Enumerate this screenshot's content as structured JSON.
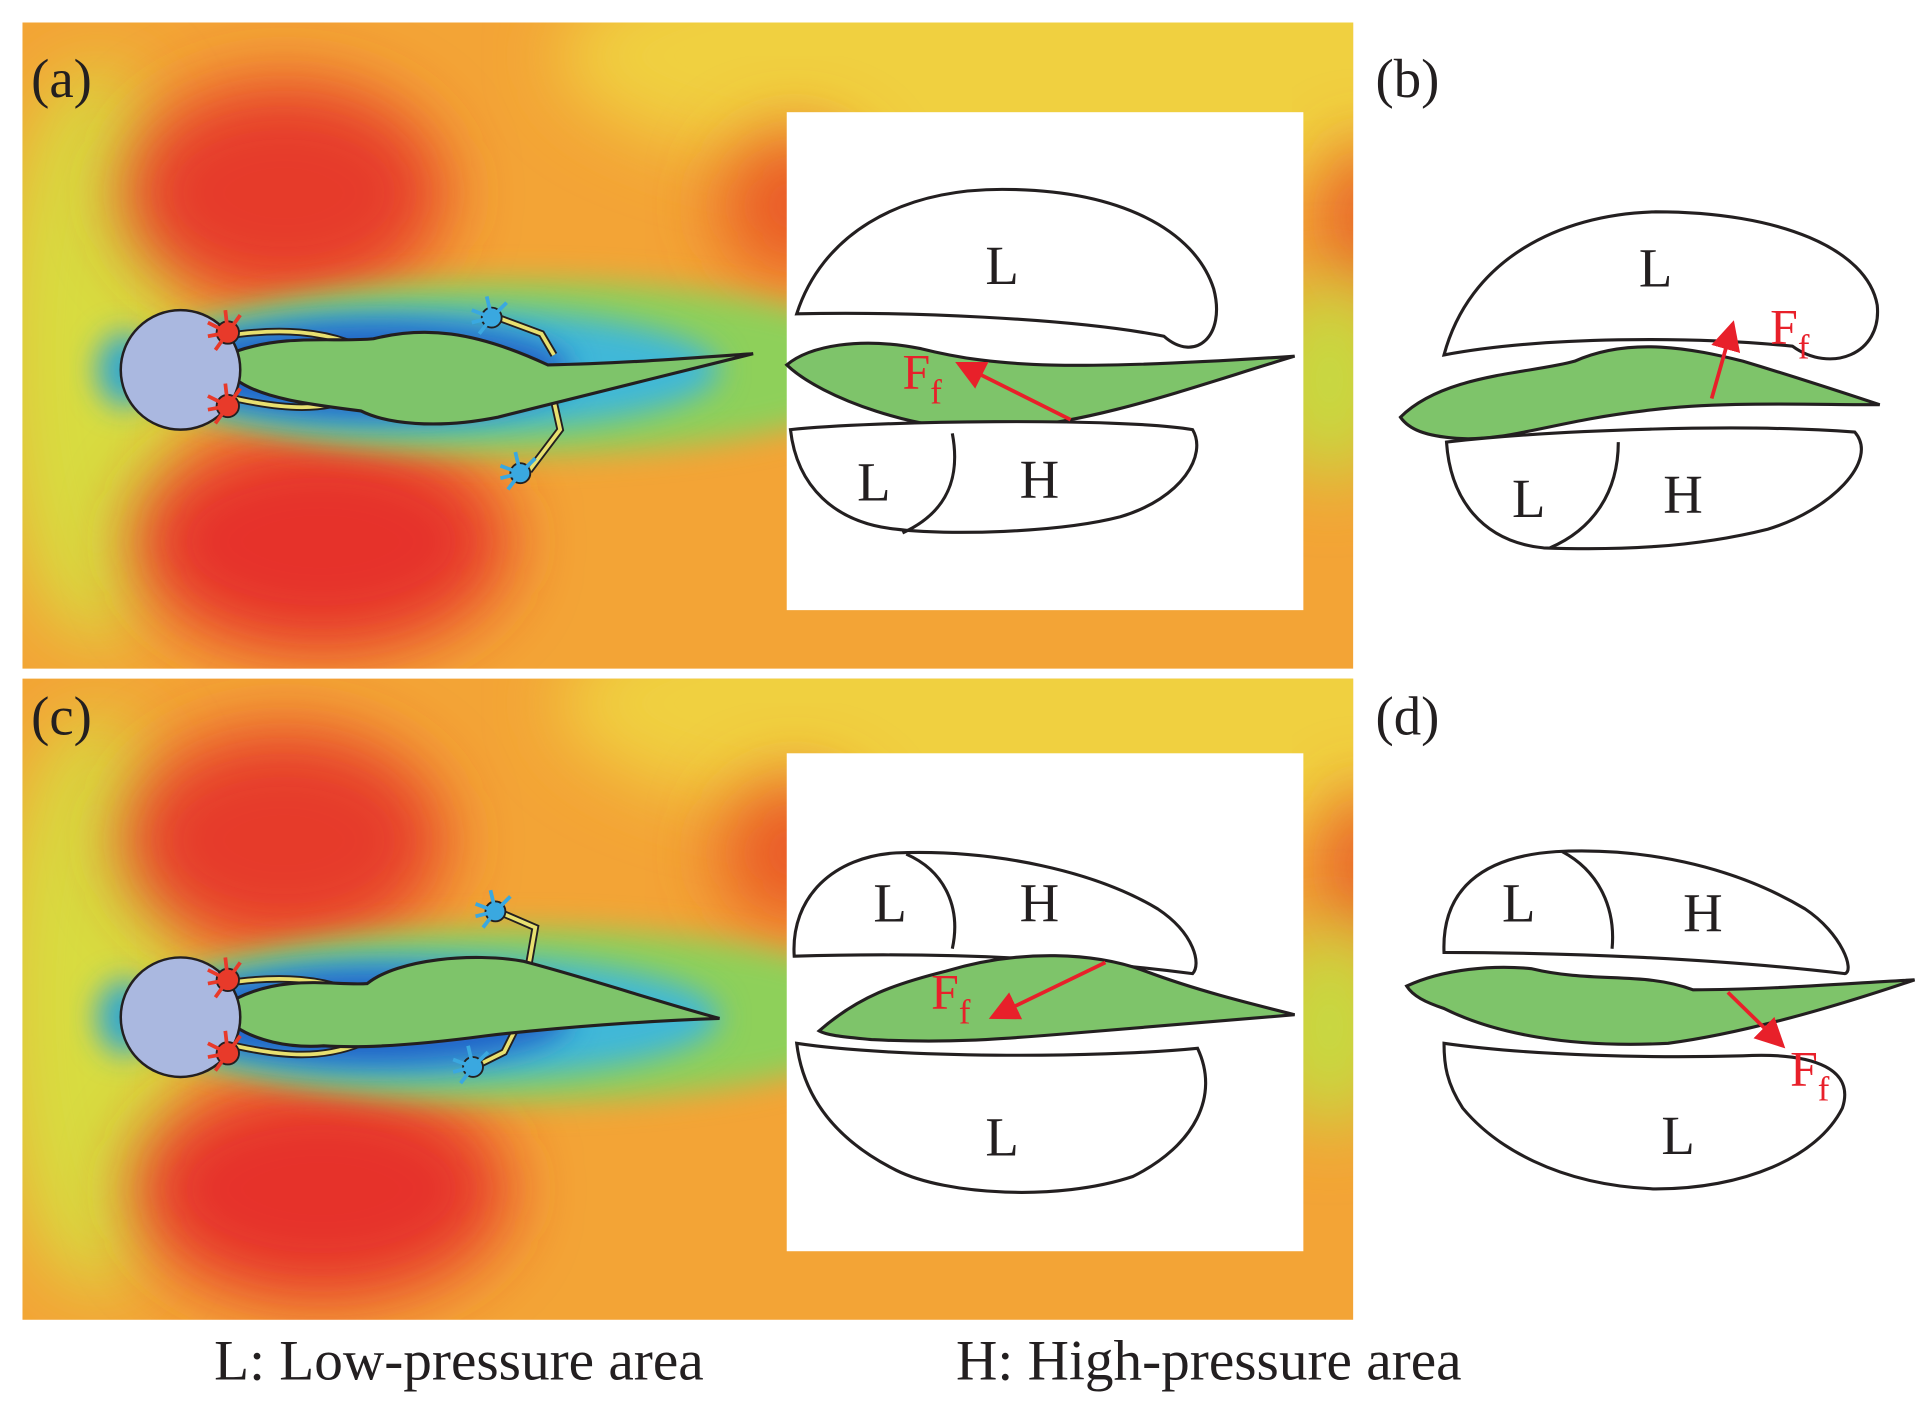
{
  "panels": [
    {
      "label": "(a)",
      "regions": [
        "L",
        "L",
        "H"
      ],
      "force": {
        "main": "F",
        "sub": "f"
      }
    },
    {
      "label": "(b)",
      "regions": [
        "L",
        "L",
        "H"
      ],
      "force": {
        "main": "F",
        "sub": "f"
      }
    },
    {
      "label": "(c)",
      "regions": [
        "L",
        "H",
        "L"
      ],
      "force": {
        "main": "F",
        "sub": "f"
      }
    },
    {
      "label": "(d)",
      "regions": [
        "L",
        "H",
        "L"
      ],
      "force": {
        "main": "F",
        "sub": "f"
      }
    }
  ],
  "legend": [
    "L: Low-pressure area",
    "H: High-pressure area"
  ]
}
